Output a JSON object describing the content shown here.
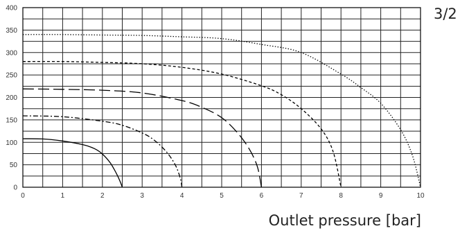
{
  "page": {
    "corner_label": "3/2"
  },
  "chart_data": {
    "type": "line",
    "title": "",
    "xlabel": "Outlet pressure [bar]",
    "ylabel": "",
    "xlim": [
      0,
      10
    ],
    "ylim": [
      0,
      400
    ],
    "grid": true,
    "x_ticks": [
      "0",
      "1",
      "2",
      "3",
      "4",
      "5",
      "6",
      "7",
      "8",
      "9",
      "10"
    ],
    "y_ticks": [
      "0",
      "50",
      "100",
      "150",
      "200",
      "250",
      "300",
      "350",
      "400"
    ],
    "series": [
      {
        "line_style": "solid",
        "x": [
          0,
          0.5,
          1.0,
          1.5,
          1.8,
          2.0,
          2.2,
          2.35,
          2.45,
          2.5
        ],
        "y": [
          108,
          107.5,
          103,
          95,
          86,
          74,
          54,
          31,
          12,
          0
        ]
      },
      {
        "line_style": "dash-dot",
        "x": [
          0,
          1.0,
          2.0,
          2.5,
          3.0,
          3.3,
          3.6,
          3.8,
          3.9,
          3.97,
          4.0
        ],
        "y": [
          159,
          157,
          147,
          138,
          121,
          105,
          80,
          55,
          36,
          16,
          0
        ]
      },
      {
        "line_style": "long-dash",
        "x": [
          0,
          1.0,
          2.0,
          3.0,
          4.0,
          4.5,
          5.0,
          5.4,
          5.7,
          5.9,
          6.0
        ],
        "y": [
          219,
          218,
          216,
          210,
          193,
          178,
          155,
          121,
          84,
          45,
          0
        ]
      },
      {
        "line_style": "dashed",
        "x": [
          0,
          1.0,
          2.0,
          3.0,
          4.0,
          5.0,
          6.0,
          6.5,
          7.0,
          7.5,
          7.8,
          8.0
        ],
        "y": [
          280,
          280,
          278,
          275,
          267,
          252,
          226,
          206,
          175,
          130,
          80,
          0
        ]
      },
      {
        "line_style": "dotted",
        "x": [
          0,
          1.0,
          2.0,
          3.0,
          4.0,
          5.0,
          6.0,
          7.0,
          8.0,
          8.5,
          9.0,
          9.5,
          9.8,
          10.0
        ],
        "y": [
          340,
          340,
          339,
          338,
          335,
          331,
          318,
          300,
          252,
          222,
          187,
          128,
          70,
          0
        ]
      }
    ]
  }
}
